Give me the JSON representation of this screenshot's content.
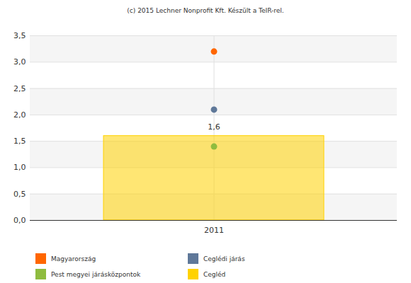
{
  "chart_data": {
    "type": "bar",
    "title": "(c) 2015 Lechner Nonprofit Kft. Készült a TeIR-rel.",
    "categories": [
      "2011"
    ],
    "series": [
      {
        "name": "Magyarország",
        "type": "scatter",
        "marker": "circle",
        "color": "#ff6600",
        "values": [
          3.2
        ]
      },
      {
        "name": "Ceglédi járás",
        "type": "scatter",
        "marker": "circle",
        "color": "#5f7899",
        "values": [
          2.1
        ]
      },
      {
        "name": "Pest megyei járásközpontok",
        "type": "scatter",
        "marker": "circle",
        "color": "#8fbc3f",
        "values": [
          1.4
        ]
      },
      {
        "name": "Cegléd",
        "type": "bar",
        "color": "#ffd200",
        "values": [
          1.6
        ],
        "data_labels": true,
        "value_labels": [
          "1,6"
        ]
      }
    ],
    "ylim": [
      0,
      3.5
    ],
    "yticks": [
      {
        "value": 0,
        "label": "0,0"
      },
      {
        "value": 0.5,
        "label": "0,5"
      },
      {
        "value": 1,
        "label": "1,0"
      },
      {
        "value": 1.5,
        "label": "1,5"
      },
      {
        "value": 2,
        "label": "2,0"
      },
      {
        "value": 2.5,
        "label": "2,5"
      },
      {
        "value": 3,
        "label": "3,0"
      },
      {
        "value": 3.5,
        "label": "3,5"
      }
    ],
    "grid": true,
    "legend": "bottom"
  }
}
